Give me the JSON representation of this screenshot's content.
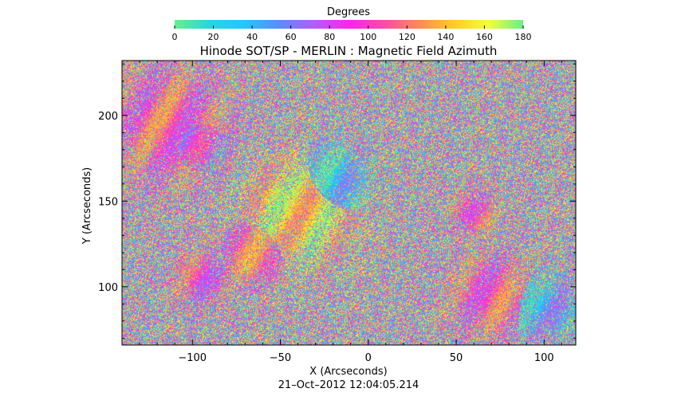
{
  "chart_data": {
    "type": "heatmap",
    "title": "Hinode SOT/SP - MERLIN : Magnetic Field Azimuth",
    "xlabel": "X (Arcseconds)",
    "ylabel": "Y (Arcseconds)",
    "xlim": [
      -140,
      118
    ],
    "ylim": [
      66,
      232
    ],
    "x_ticks": [
      -100,
      -50,
      0,
      50,
      100
    ],
    "x_tick_labels": [
      "−100",
      "−50",
      "0",
      "50",
      "100"
    ],
    "y_ticks": [
      100,
      150,
      200
    ],
    "y_tick_labels": [
      "100",
      "150",
      "200"
    ],
    "colorbar": {
      "label": "Degrees",
      "range": [
        0,
        180
      ],
      "ticks": [
        0,
        20,
        40,
        60,
        80,
        100,
        120,
        140,
        160,
        180
      ],
      "tick_labels": [
        "0",
        "20",
        "40",
        "60",
        "80",
        "100",
        "120",
        "140",
        "160",
        "180"
      ],
      "colors": [
        "#66f08a",
        "#22d8e0",
        "#22c8ff",
        "#5a8cff",
        "#b45cff",
        "#ff22ee",
        "#ff4aa8",
        "#ff8a55",
        "#ffcc22",
        "#f4ff33",
        "#66f08a"
      ]
    },
    "regions": [
      {
        "x": -115,
        "y": 195,
        "radius": 22,
        "azimuth": 108
      },
      {
        "x": -100,
        "y": 185,
        "radius": 12,
        "azimuth": 80
      },
      {
        "x": -40,
        "y": 145,
        "radius": 20,
        "azimuth": 150
      },
      {
        "x": -20,
        "y": 162,
        "radius": 13,
        "azimuth": 30
      },
      {
        "x": -65,
        "y": 120,
        "radius": 12,
        "azimuth": 115
      },
      {
        "x": -95,
        "y": 105,
        "radius": 10,
        "azimuth": 100
      },
      {
        "x": 60,
        "y": 143,
        "radius": 8,
        "azimuth": 110
      },
      {
        "x": 70,
        "y": 95,
        "radius": 15,
        "azimuth": 108
      },
      {
        "x": 100,
        "y": 88,
        "radius": 12,
        "azimuth": 40
      }
    ]
  },
  "timestamp": "21–Oct–2012 12:04:05.214"
}
